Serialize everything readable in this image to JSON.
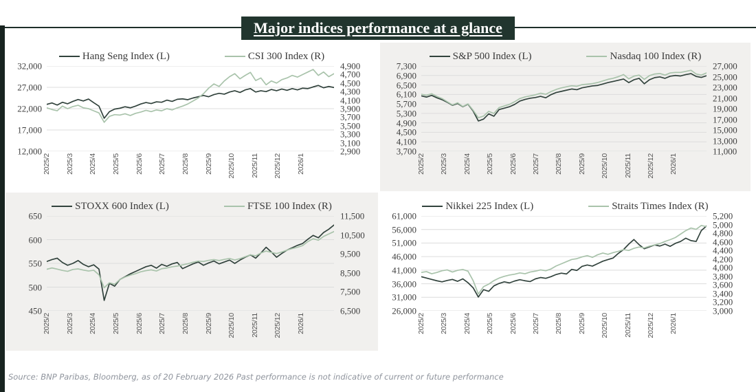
{
  "title": "Major indices performance at a glance",
  "footer": "Source: BNP Paribas, Bloomberg, as of 20 February 2026 Past performance is not indicative of current or future performance",
  "colors": {
    "dark_line": "#31423c",
    "light_line": "#a9c3ab",
    "title_bg": "#21352e",
    "accent_bar": "#182420",
    "panel_gray": "#f1f0ee",
    "panel_white": "#ffffff",
    "grid": "#dcdcdc",
    "axis_text": "#3f3f3f"
  },
  "x_labels": [
    "2025/2",
    "2025/3",
    "2025/4",
    "2025/5",
    "2025/6",
    "2025/7",
    "2025/8",
    "2025/9",
    "2025/10",
    "2025/11",
    "2025/12",
    "2026/1"
  ],
  "chart_data": [
    {
      "type": "line",
      "panel": "white",
      "left_axis": {
        "min": 12000,
        "max": 32000,
        "ticks": [
          "32,000",
          "27,000",
          "22,000",
          "17,000",
          "12,000"
        ]
      },
      "right_axis": {
        "min": 2900,
        "max": 4900,
        "ticks": [
          "4,900",
          "4,700",
          "4,500",
          "4,300",
          "4,100",
          "3,900",
          "3,700",
          "3,500",
          "3,300",
          "3,100",
          "2,900"
        ]
      },
      "series": [
        {
          "name": "Hang Seng Index (L)",
          "axis": "left",
          "color": "#31423c",
          "values": [
            23000,
            23350,
            22850,
            23500,
            23150,
            23700,
            24150,
            23800,
            24250,
            23400,
            22600,
            19750,
            21300,
            21900,
            22100,
            22450,
            22200,
            22600,
            23100,
            23450,
            23200,
            23600,
            23500,
            24000,
            23700,
            24200,
            24300,
            24100,
            24500,
            24800,
            25100,
            24800,
            25300,
            25600,
            25400,
            25900,
            26200,
            25800,
            26400,
            26700,
            25900,
            26200,
            26000,
            26500,
            26200,
            26600,
            26300,
            26700,
            26400,
            26800,
            26700,
            27100,
            27450,
            26900,
            27200,
            26950
          ]
        },
        {
          "name": "CSI 300 Index (R)",
          "axis": "right",
          "color": "#a9c3ab",
          "values": [
            3920,
            3880,
            3850,
            3960,
            3900,
            3950,
            3980,
            3920,
            3900,
            3850,
            3800,
            3580,
            3720,
            3760,
            3750,
            3780,
            3740,
            3790,
            3820,
            3860,
            3830,
            3870,
            3850,
            3900,
            3870,
            3920,
            3960,
            4010,
            4080,
            4150,
            4250,
            4380,
            4480,
            4420,
            4550,
            4650,
            4720,
            4600,
            4680,
            4750,
            4560,
            4620,
            4460,
            4550,
            4500,
            4580,
            4620,
            4680,
            4640,
            4700,
            4760,
            4820,
            4680,
            4760,
            4650,
            4720
          ]
        }
      ]
    },
    {
      "type": "line",
      "panel": "gray",
      "left_axis": {
        "min": 3700,
        "max": 7300,
        "ticks": [
          "7,300",
          "6,900",
          "6,500",
          "6,100",
          "5,700",
          "5,300",
          "4,900",
          "4,500",
          "4,100",
          "3,700"
        ]
      },
      "right_axis": {
        "min": 11000,
        "max": 27000,
        "ticks": [
          "27,000",
          "25,000",
          "23,000",
          "21,000",
          "19,000",
          "17,000",
          "15,000",
          "13,000",
          "11,000"
        ]
      },
      "series": [
        {
          "name": "S&P 500 Index (L)",
          "axis": "left",
          "color": "#31423c",
          "values": [
            6040,
            5990,
            6060,
            5960,
            5880,
            5770,
            5640,
            5720,
            5580,
            5690,
            5400,
            4980,
            5060,
            5280,
            5180,
            5460,
            5520,
            5580,
            5680,
            5820,
            5890,
            5940,
            5970,
            6020,
            5960,
            6090,
            6180,
            6230,
            6280,
            6330,
            6300,
            6380,
            6420,
            6460,
            6480,
            6540,
            6600,
            6650,
            6700,
            6750,
            6600,
            6720,
            6780,
            6550,
            6720,
            6810,
            6840,
            6780,
            6870,
            6900,
            6880,
            6940,
            6980,
            6860,
            6820,
            6890
          ]
        },
        {
          "name": "Nasdaq 100 Index (R)",
          "axis": "right",
          "color": "#a9c3ab",
          "values": [
            21700,
            21500,
            21800,
            21300,
            20900,
            20300,
            19700,
            20100,
            19400,
            19900,
            18700,
            17300,
            17600,
            18500,
            18100,
            19200,
            19500,
            19800,
            20300,
            20900,
            21200,
            21400,
            21600,
            21900,
            21700,
            22200,
            22600,
            22900,
            23100,
            23300,
            23200,
            23500,
            23600,
            23700,
            23900,
            24200,
            24500,
            24700,
            25000,
            25400,
            24600,
            25100,
            25300,
            24500,
            25200,
            25500,
            25600,
            25300,
            25700,
            25800,
            25800,
            26000,
            26200,
            25500,
            25300,
            25700
          ]
        }
      ]
    },
    {
      "type": "line",
      "panel": "gray",
      "left_axis": {
        "min": 450,
        "max": 650,
        "ticks": [
          "650",
          "600",
          "550",
          "500",
          "450"
        ]
      },
      "right_axis": {
        "min": 6500,
        "max": 11500,
        "ticks": [
          "11,500",
          "10,500",
          "9,500",
          "8,500",
          "7,500",
          "6,500"
        ]
      },
      "series": [
        {
          "name": "STOXX 600 Index (L)",
          "axis": "left",
          "color": "#31423c",
          "values": [
            554,
            558,
            561,
            552,
            546,
            550,
            556,
            548,
            543,
            547,
            538,
            472,
            508,
            502,
            516,
            522,
            528,
            533,
            538,
            543,
            546,
            540,
            548,
            544,
            549,
            552,
            539,
            544,
            549,
            553,
            546,
            551,
            555,
            549,
            553,
            557,
            550,
            557,
            563,
            568,
            561,
            572,
            584,
            574,
            563,
            571,
            578,
            583,
            588,
            592,
            601,
            609,
            604,
            615,
            622,
            631
          ]
        },
        {
          "name": "FTSE 100 Index (R)",
          "axis": "right",
          "color": "#a9c3ab",
          "values": [
            8690,
            8760,
            8700,
            8630,
            8580,
            8680,
            8710,
            8650,
            8600,
            8640,
            8400,
            7720,
            7980,
            7900,
            8150,
            8280,
            8380,
            8460,
            8560,
            8620,
            8660,
            8600,
            8720,
            8760,
            8820,
            8860,
            8920,
            8980,
            9060,
            9120,
            9100,
            9160,
            9200,
            9150,
            9210,
            9260,
            9180,
            9250,
            9350,
            9450,
            9400,
            9550,
            9650,
            9580,
            9520,
            9600,
            9700,
            9780,
            9850,
            9940,
            10150,
            10300,
            10220,
            10420,
            10550,
            10680
          ]
        }
      ]
    },
    {
      "type": "line",
      "panel": "white",
      "left_axis": {
        "min": 26000,
        "max": 61000,
        "ticks": [
          "61,000",
          "56,000",
          "51,000",
          "46,000",
          "41,000",
          "36,000",
          "31,000",
          "26,000"
        ]
      },
      "right_axis": {
        "min": 3000,
        "max": 5200,
        "ticks": [
          "5,200",
          "5,000",
          "4,800",
          "4,600",
          "4,400",
          "4,200",
          "4,000",
          "3,800",
          "3,600",
          "3,400",
          "3,200",
          "3,000"
        ]
      },
      "series": [
        {
          "name": "Nikkei 225 Index (L)",
          "axis": "left",
          "color": "#31423c",
          "values": [
            38600,
            38100,
            37600,
            37100,
            36700,
            37200,
            37600,
            36900,
            37800,
            36400,
            34500,
            31100,
            33800,
            33200,
            35200,
            36100,
            36700,
            36300,
            37000,
            37500,
            37100,
            36800,
            37800,
            38300,
            38000,
            38600,
            39400,
            39900,
            39600,
            41300,
            40900,
            42400,
            42900,
            42500,
            43400,
            44300,
            44900,
            45500,
            47200,
            48600,
            50600,
            52300,
            50400,
            48900,
            49600,
            50300,
            49900,
            50600,
            49800,
            50900,
            51600,
            52800,
            51900,
            51600,
            55600,
            57300
          ]
        },
        {
          "name": "Straits Times Index (R)",
          "axis": "right",
          "color": "#a9c3ab",
          "values": [
            3890,
            3910,
            3860,
            3890,
            3930,
            3950,
            3900,
            3940,
            3960,
            3920,
            3700,
            3390,
            3560,
            3620,
            3700,
            3760,
            3800,
            3830,
            3850,
            3880,
            3860,
            3900,
            3920,
            3950,
            3930,
            3970,
            4040,
            4090,
            4140,
            4190,
            4210,
            4250,
            4280,
            4240,
            4300,
            4340,
            4310,
            4350,
            4380,
            4420,
            4400,
            4450,
            4480,
            4460,
            4500,
            4530,
            4560,
            4610,
            4650,
            4700,
            4780,
            4860,
            4920,
            4890,
            4980,
            4950
          ]
        }
      ]
    }
  ]
}
